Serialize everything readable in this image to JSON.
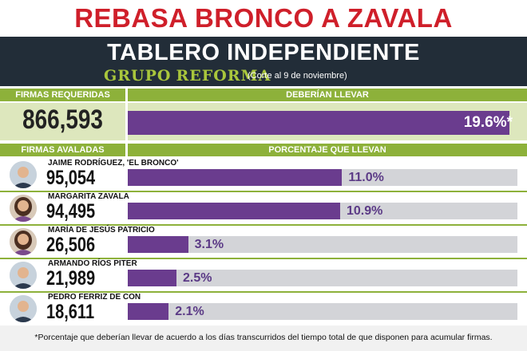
{
  "headline": "REBASA BRONCO A ZAVALA",
  "banner": {
    "title": "TABLERO INDEPENDIENTE",
    "brand_part1": "GRUPO",
    "brand_part2": "REFORMA",
    "cutoff": "(Corte al 9 de noviembre)"
  },
  "headers": {
    "required": "FIRMAS REQUERIDAS",
    "should_have": "DEBERÍAN LLEVAR",
    "endorsed": "FIRMAS AVALADAS",
    "percent": "PORCENTAJE QUE LLEVAN"
  },
  "colors": {
    "headline": "#cf1f2a",
    "banner": "#222d38",
    "header_green": "#8db13a",
    "bar_purple": "#6a3c8e",
    "track": "#d3d4d8"
  },
  "chart_data": {
    "type": "bar",
    "required": {
      "signatures": "866,593",
      "expected_pct": 19.6,
      "expected_label": "19.6%*"
    },
    "xlim": [
      0,
      20
    ],
    "categories": [
      "JAIME RODRÍGUEZ, 'EL BRONCO'",
      "MARGARITA ZAVALA",
      "MARÍA DE JESÚS PATRICIO",
      "ARMANDO RÍOS PITER",
      "PEDRO FERRIZ DE CON"
    ],
    "signatures": [
      "95,054",
      "94,495",
      "26,506",
      "21,989",
      "18,611"
    ],
    "values": [
      11.0,
      10.9,
      3.1,
      2.5,
      2.1
    ],
    "value_labels": [
      "11.0%",
      "10.9%",
      "3.1%",
      "2.5%",
      "2.1%"
    ],
    "avatars": [
      "person-man-icon",
      "person-woman-icon",
      "person-woman-icon",
      "person-man-icon",
      "person-man-icon"
    ]
  },
  "footnote": "*Porcentaje que deberían llevar de acuerdo a los días transcurridos del tiempo total de que disponen para acumular firmas."
}
